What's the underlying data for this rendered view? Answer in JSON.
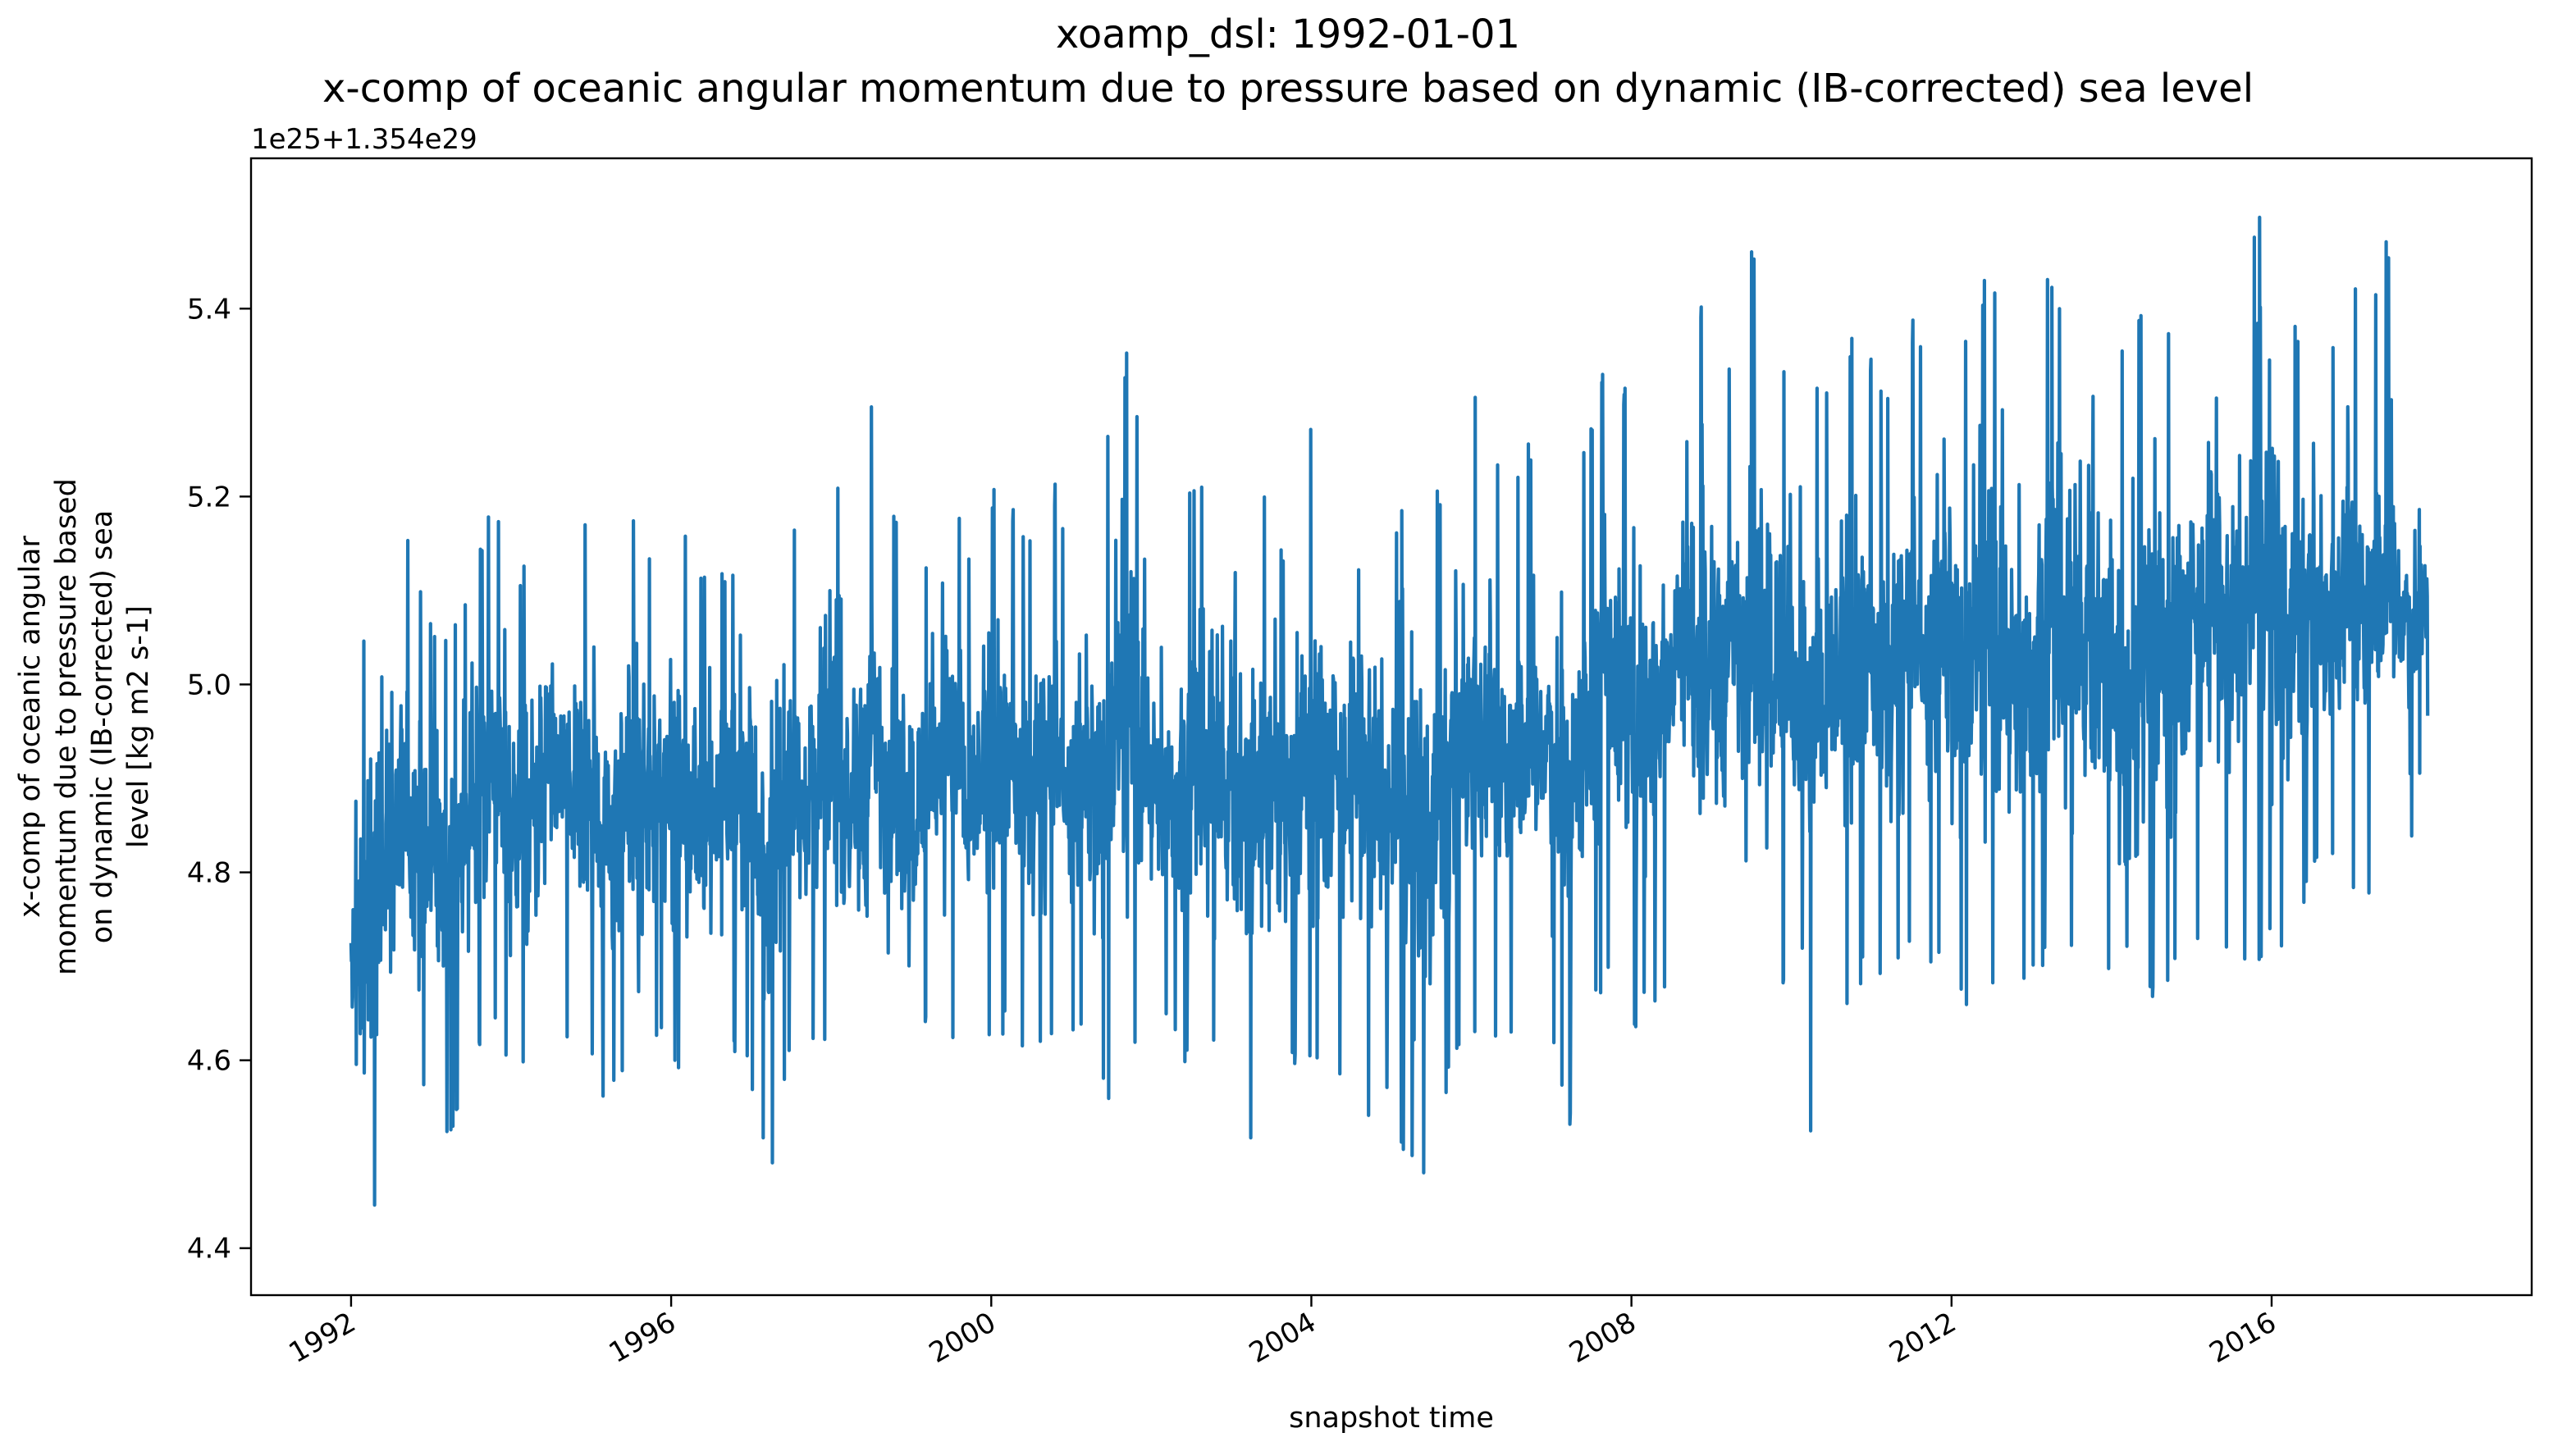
{
  "chart_data": {
    "type": "line",
    "title_line1": "xoamp_dsl: 1992-01-01",
    "title_line2": "x-comp of oceanic angular momentum due to pressure based on dynamic (IB-corrected) sea level",
    "xlabel": "snapshot time",
    "ylabel_lines": [
      "x-comp of oceanic angular",
      "momentum due to pressure based",
      "on dynamic (IB-corrected) sea",
      "level [kg m2 s-1]"
    ],
    "y_offset_label": "1e25+1.354e29",
    "x_tick_labels": [
      "1992",
      "1996",
      "2000",
      "2004",
      "2008",
      "2012",
      "2016"
    ],
    "x_ticks": [
      1992,
      1996,
      2000,
      2004,
      2008,
      2012,
      2016
    ],
    "y_tick_labels": [
      "4.4",
      "4.6",
      "4.8",
      "5.0",
      "5.2",
      "5.4"
    ],
    "y_ticks": [
      4.4,
      4.6,
      4.8,
      5.0,
      5.2,
      5.4
    ],
    "xlim": [
      1990.75,
      2019.25
    ],
    "ylim": [
      4.35,
      5.56
    ],
    "series": [
      {
        "color": "#1f77b4",
        "x": [
          1992.0,
          1992.25,
          1992.5,
          1992.75,
          1993.0,
          1993.25,
          1993.5,
          1993.75,
          1994.0,
          1994.25,
          1994.5,
          1994.75,
          1995.0,
          1995.25,
          1995.5,
          1995.75,
          1996.0,
          1996.25,
          1996.5,
          1996.75,
          1997.0,
          1997.25,
          1997.5,
          1997.75,
          1998.0,
          1998.25,
          1998.5,
          1998.75,
          1999.0,
          1999.25,
          1999.5,
          1999.75,
          2000.0,
          2000.25,
          2000.5,
          2000.75,
          2001.0,
          2001.25,
          2001.5,
          2001.75,
          2002.0,
          2002.25,
          2002.5,
          2002.75,
          2003.0,
          2003.25,
          2003.5,
          2003.75,
          2004.0,
          2004.25,
          2004.5,
          2004.75,
          2005.0,
          2005.25,
          2005.5,
          2005.75,
          2006.0,
          2006.25,
          2006.5,
          2006.75,
          2007.0,
          2007.25,
          2007.5,
          2007.75,
          2008.0,
          2008.25,
          2008.5,
          2008.75,
          2009.0,
          2009.25,
          2009.5,
          2009.75,
          2010.0,
          2010.25,
          2010.5,
          2010.75,
          2011.0,
          2011.25,
          2011.5,
          2011.75,
          2012.0,
          2012.25,
          2012.5,
          2012.75,
          2013.0,
          2013.25,
          2013.5,
          2013.75,
          2014.0,
          2014.25,
          2014.5,
          2014.75,
          2015.0,
          2015.25,
          2015.5,
          2015.75,
          2016.0,
          2016.25,
          2016.5,
          2016.75,
          2017.0,
          2017.25,
          2017.5,
          2017.75,
          2017.95
        ],
        "y_low": [
          4.43,
          4.4,
          4.49,
          4.56,
          4.54,
          4.5,
          4.58,
          4.62,
          4.6,
          4.58,
          4.62,
          4.6,
          4.58,
          4.55,
          4.6,
          4.62,
          4.6,
          4.58,
          4.62,
          4.6,
          4.58,
          4.46,
          4.62,
          4.6,
          4.62,
          4.58,
          4.49,
          4.62,
          4.6,
          4.63,
          4.62,
          4.6,
          4.62,
          4.63,
          4.6,
          4.62,
          4.63,
          4.6,
          4.55,
          4.62,
          4.6,
          4.63,
          4.58,
          4.62,
          4.6,
          4.49,
          4.6,
          4.58,
          4.6,
          4.55,
          4.58,
          4.52,
          4.55,
          4.48,
          4.44,
          4.58,
          4.6,
          4.62,
          4.6,
          4.65,
          4.62,
          4.52,
          4.65,
          4.68,
          4.62,
          4.65,
          4.68,
          4.65,
          4.62,
          4.65,
          4.68,
          4.7,
          4.65,
          4.5,
          4.68,
          4.65,
          4.7,
          4.68,
          4.72,
          4.7,
          4.68,
          4.65,
          4.7,
          4.6,
          4.68,
          4.7,
          4.72,
          4.7,
          4.68,
          4.52,
          4.65,
          4.68,
          4.7,
          4.72,
          4.7,
          4.68,
          4.72,
          4.68,
          4.78,
          4.8,
          4.78,
          4.75,
          4.8,
          4.78,
          4.96
        ],
        "y_high": [
          4.93,
          5.14,
          5.17,
          5.15,
          5.08,
          5.06,
          5.1,
          5.22,
          5.12,
          5.15,
          5.21,
          5.16,
          5.2,
          5.12,
          5.19,
          5.14,
          5.2,
          5.15,
          5.12,
          5.14,
          5.18,
          5.12,
          5.2,
          5.16,
          5.26,
          5.14,
          5.33,
          5.2,
          5.13,
          5.14,
          5.26,
          5.14,
          5.22,
          5.2,
          5.17,
          5.24,
          5.15,
          5.2,
          5.3,
          5.37,
          5.2,
          5.17,
          5.22,
          5.24,
          5.15,
          5.26,
          5.2,
          5.14,
          5.28,
          5.26,
          5.22,
          5.28,
          5.16,
          5.21,
          5.2,
          5.23,
          5.34,
          5.25,
          5.22,
          5.26,
          5.24,
          5.22,
          5.28,
          5.38,
          5.3,
          5.32,
          5.36,
          5.44,
          5.4,
          5.36,
          5.48,
          5.4,
          5.33,
          5.36,
          5.32,
          5.38,
          5.36,
          5.32,
          5.4,
          5.36,
          5.46,
          5.38,
          5.45,
          5.42,
          5.38,
          5.45,
          5.4,
          5.36,
          5.42,
          5.35,
          5.46,
          5.38,
          5.42,
          5.46,
          5.4,
          5.48,
          5.52,
          5.38,
          5.4,
          5.34,
          5.44,
          5.4,
          5.48,
          5.32,
          5.23
        ]
      }
    ]
  }
}
